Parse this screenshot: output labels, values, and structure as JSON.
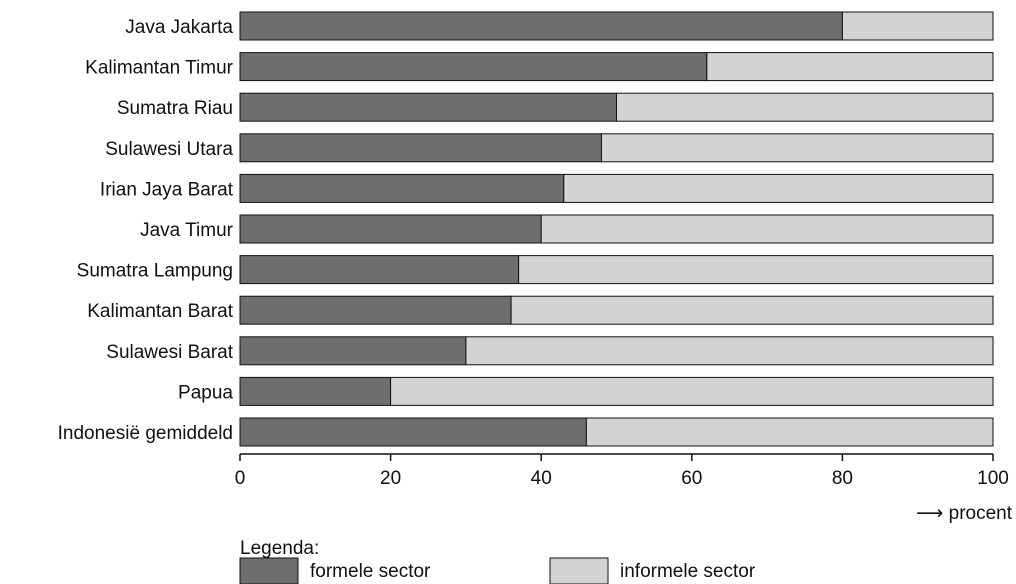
{
  "chart_data": {
    "type": "bar",
    "orientation": "horizontal",
    "stacked": true,
    "categories": [
      "Java Jakarta",
      "Kalimantan Timur",
      "Sumatra Riau",
      "Sulawesi Utara",
      "Irian Jaya Barat",
      "Java Timur",
      "Sumatra Lampung",
      "Kalimantan Barat",
      "Sulawesi Barat",
      "Papua",
      "Indonesië gemiddeld"
    ],
    "series": [
      {
        "name": "formele sector",
        "color": "#6e6e6e",
        "values": [
          80,
          62,
          50,
          48,
          43,
          40,
          37,
          36,
          30,
          20,
          46
        ]
      },
      {
        "name": "informele sector",
        "color": "#d3d3d3",
        "values": [
          20,
          38,
          50,
          52,
          57,
          60,
          63,
          64,
          70,
          80,
          54
        ]
      }
    ],
    "xlim": [
      0,
      100
    ],
    "xticks": [
      0,
      20,
      40,
      60,
      80,
      100
    ],
    "xlabel": "procent",
    "xlabel_prefix": "⟶",
    "legend_title": "Legenda:",
    "legend_position": "bottom",
    "grid": false
  }
}
